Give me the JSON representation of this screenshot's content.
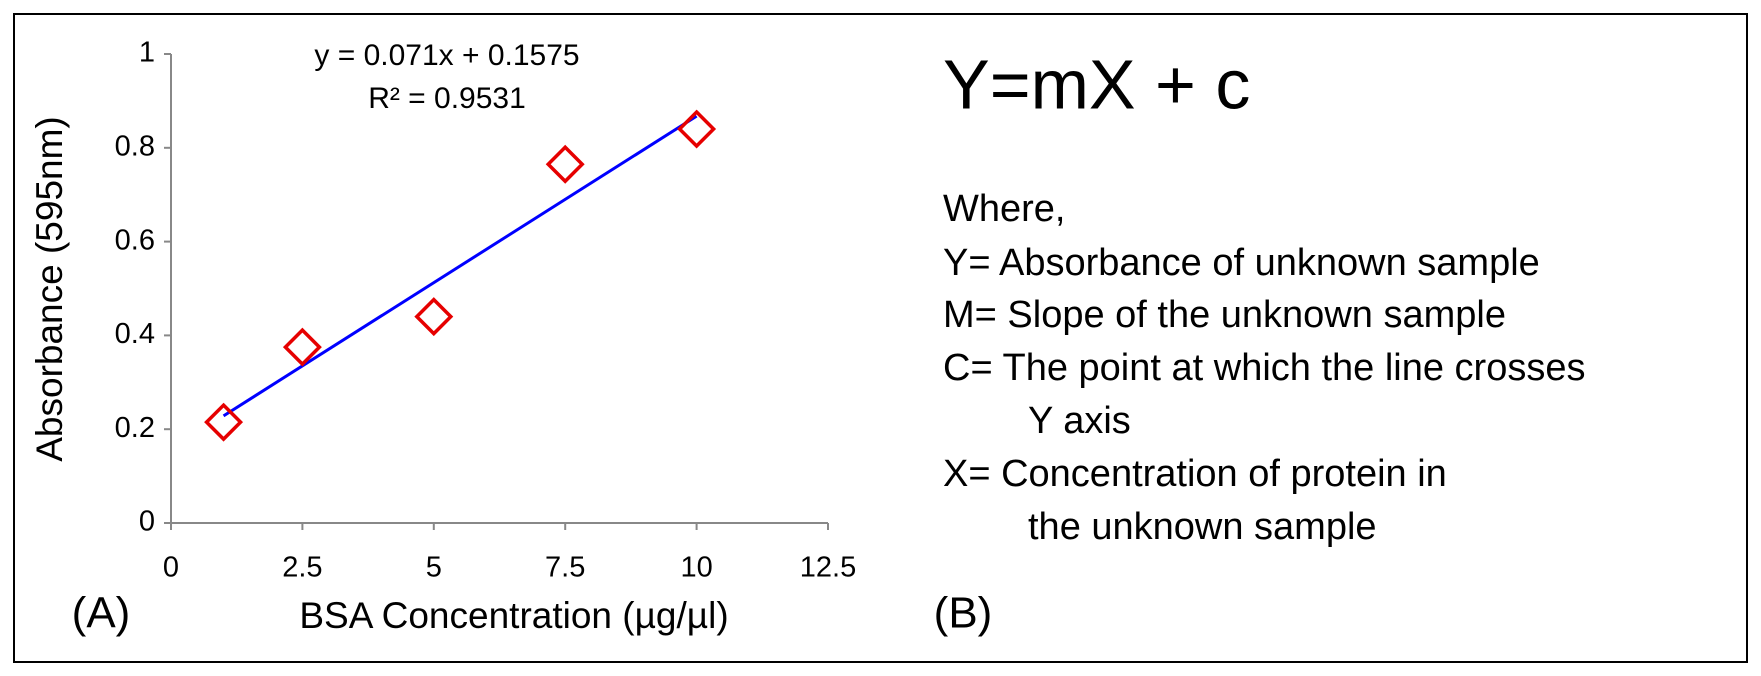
{
  "chart_data": {
    "type": "scatter",
    "x_label": "BSA Concentration (µg/µl)",
    "y_label": "Absorbance (595nm)",
    "equation": "y = 0.071x + 0.1575",
    "r_squared": "R² = 0.9531",
    "panel_label": "(A)",
    "x": [
      1,
      2.5,
      5,
      7.5,
      10
    ],
    "values": [
      0.215,
      0.375,
      0.44,
      0.765,
      0.84
    ],
    "color": "#e60000",
    "trendline": {
      "x": [
        1,
        10
      ],
      "values": [
        0.2285,
        0.8675
      ],
      "color": "#0000ff"
    },
    "xlim": [
      0,
      12.5
    ],
    "xticks": [
      0,
      2.5,
      5,
      7.5,
      10,
      12.5
    ],
    "ylim": [
      0,
      1
    ],
    "yticks": [
      0,
      0.2,
      0.4,
      0.6,
      0.8,
      1
    ]
  },
  "panel_b": {
    "equation": "Y=mX + c",
    "lines": [
      "Where,",
      "Y=  Absorbance of unknown sample",
      "M= Slope of the unknown sample",
      "C= The point at which the line crosses",
      "Y axis",
      "X= Concentration of protein in",
      "the unknown sample"
    ],
    "panel_label": "(B)"
  }
}
